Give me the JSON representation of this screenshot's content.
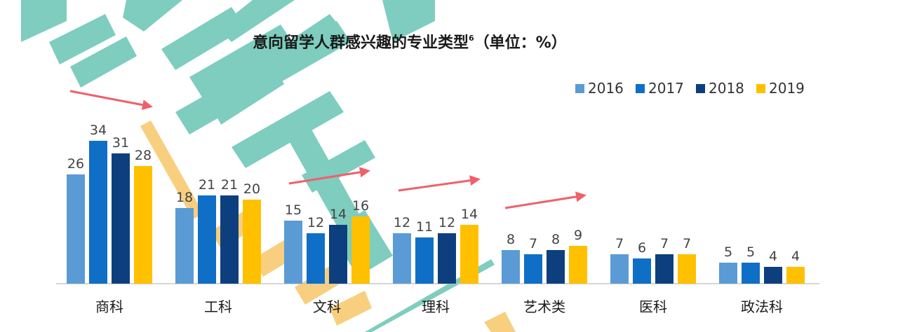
{
  "chart_data": {
    "type": "bar",
    "title": "意向留学人群感兴趣的专业类型",
    "title_superscript": "6",
    "title_unit": "（单位：%）",
    "categories": [
      "商科",
      "工科",
      "文科",
      "理科",
      "艺术类",
      "医科",
      "政法科"
    ],
    "series": [
      {
        "name": "2016",
        "color": "#5b9bd5",
        "values": [
          26,
          18,
          15,
          12,
          8,
          7,
          5
        ]
      },
      {
        "name": "2017",
        "color": "#0f6fc6",
        "values": [
          34,
          21,
          12,
          11,
          7,
          6,
          5
        ]
      },
      {
        "name": "2018",
        "color": "#0d3f7f",
        "values": [
          31,
          21,
          14,
          12,
          8,
          7,
          4
        ]
      },
      {
        "name": "2019",
        "color": "#ffc000",
        "values": [
          28,
          20,
          16,
          14,
          9,
          7,
          4
        ]
      }
    ],
    "ylim": [
      0,
      40
    ],
    "grid": false,
    "legend_position": "top-right",
    "trend_arrows_on_categories": [
      "商科",
      "文科",
      "理科",
      "艺术类"
    ],
    "arrow_color": "#f0606a"
  },
  "watermark": {
    "text": "新东方",
    "color": "#5bbfae"
  }
}
